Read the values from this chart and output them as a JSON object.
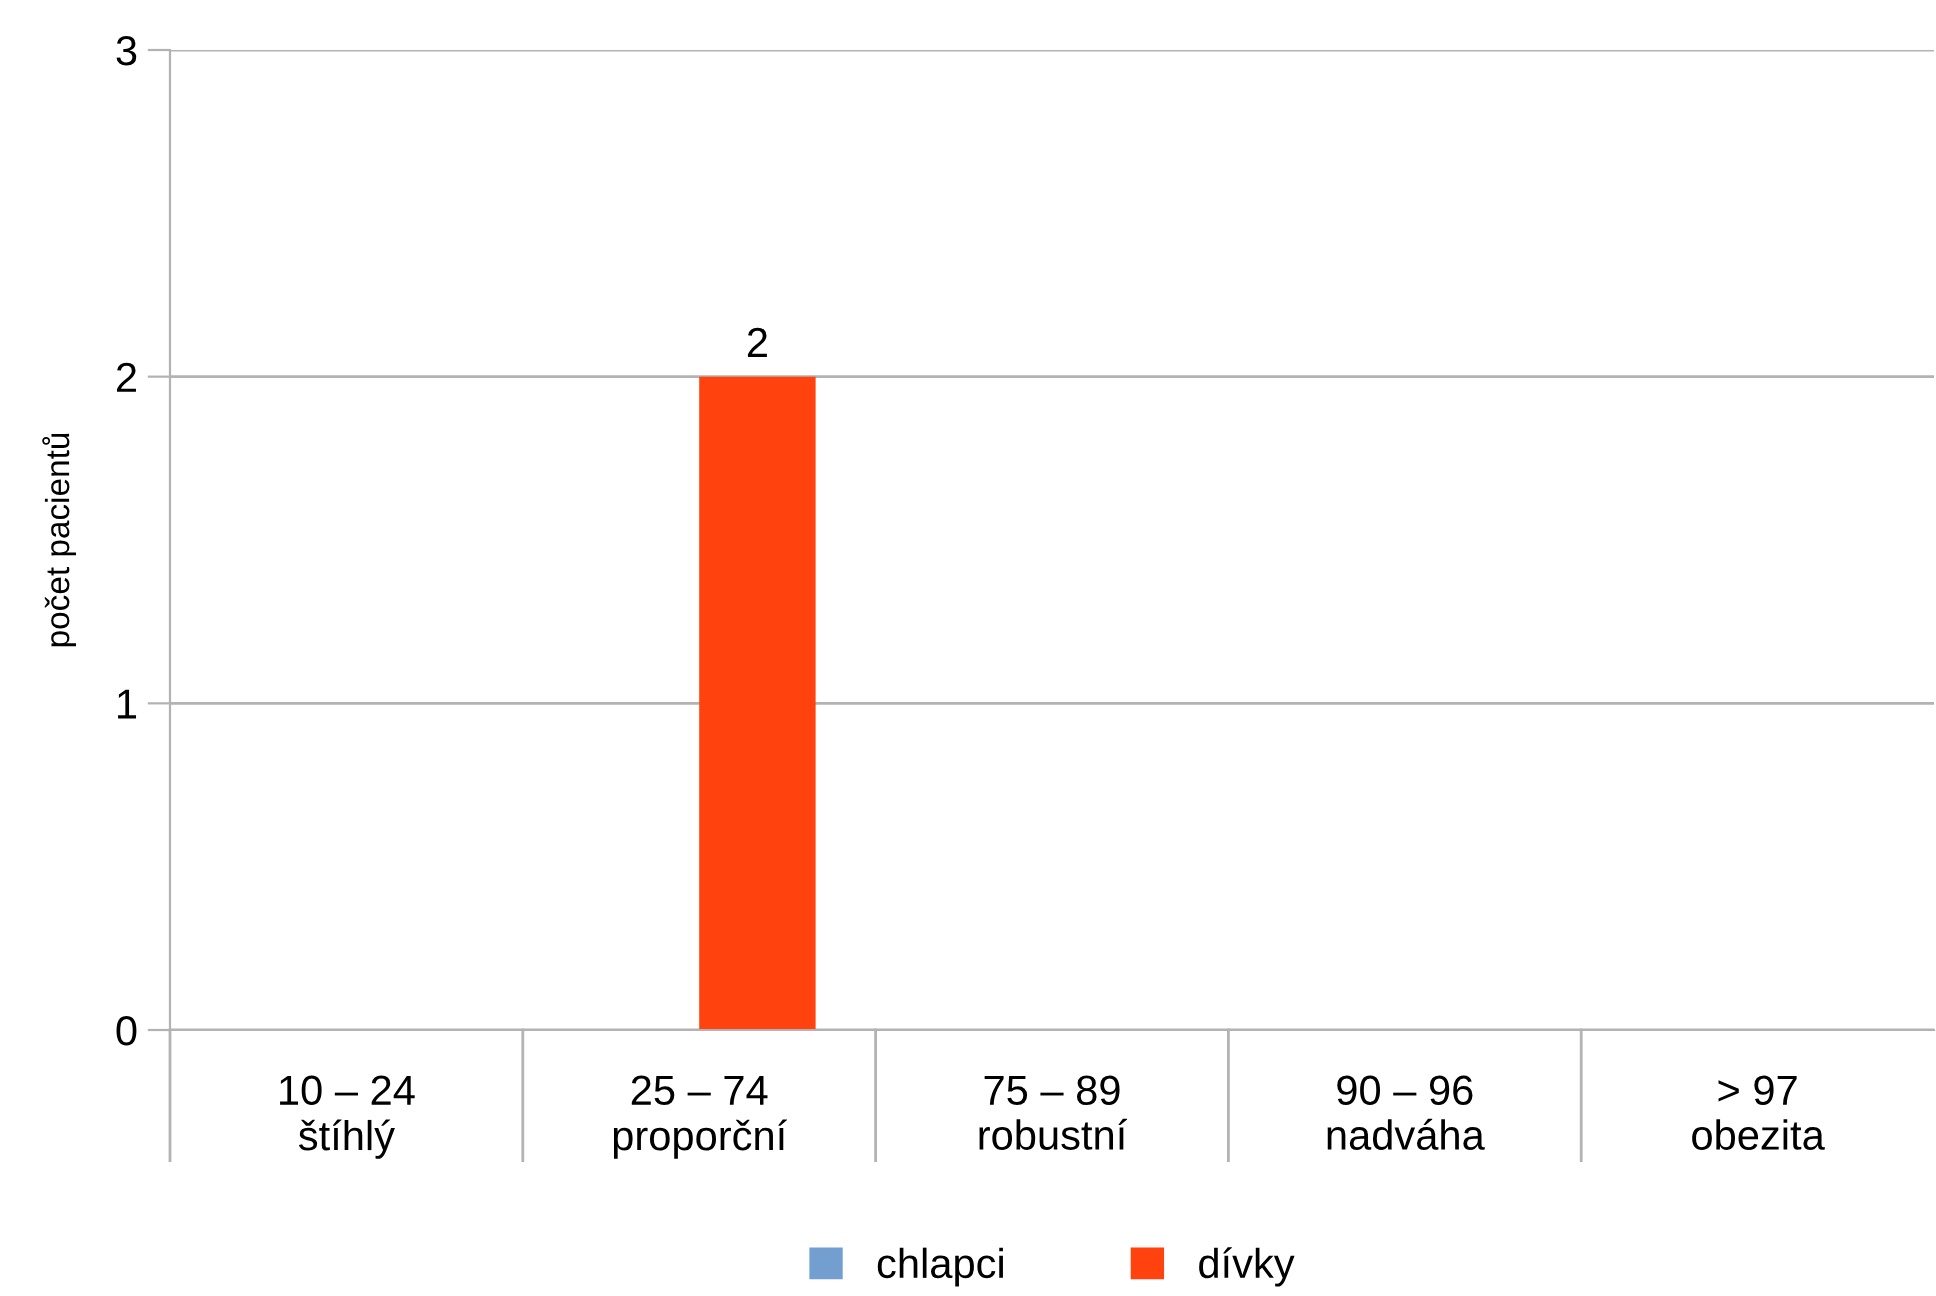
{
  "chart_data": {
    "type": "bar",
    "ylabel": "počet pacientů",
    "categories": [
      "10 – 24\nštíhlý",
      "25 – 74\nproporční",
      "75 – 89\nrobustní",
      "90 – 96\nnadváha",
      "> 97\nobezita"
    ],
    "series": [
      {
        "name": "chlapci",
        "color": "#729fcf",
        "values": [
          0,
          0,
          0,
          0,
          0
        ]
      },
      {
        "name": "dívky",
        "color": "#ff420e",
        "values": [
          0,
          2,
          0,
          0,
          0
        ],
        "value_labels": [
          null,
          "2",
          null,
          null,
          null
        ]
      }
    ],
    "ylim": [
      0,
      3
    ],
    "yticks": [
      0,
      1,
      2,
      3
    ],
    "grid": "y",
    "legend": "bottom"
  }
}
